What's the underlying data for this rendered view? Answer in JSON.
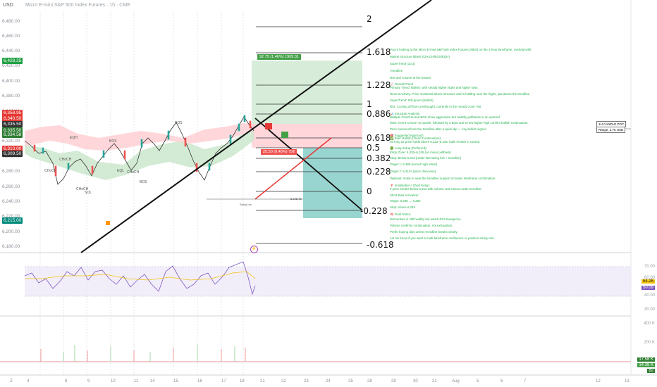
{
  "header": {
    "currency": "USD",
    "title": "Micro E-mini S&P 500 Index Futures · 1h · CME"
  },
  "price_axis": [
    "6,480.00",
    "6,460.00",
    "6,440.00",
    "6,420.00",
    "6,400.00",
    "6,380.00",
    "6,360.00",
    "6,340.00",
    "6,320.00",
    "6,300.00",
    "6,280.00",
    "6,260.00",
    "6,240.00",
    "6,220.00",
    "6,200.00",
    "6,180.00"
  ],
  "price_badges": [
    {
      "text": "6,428.25",
      "color": "#22a045"
    },
    {
      "text": "6,358.95",
      "color": "#e53935"
    },
    {
      "text": "6,340.50",
      "color": "#e53935"
    },
    {
      "text": "6,335.50",
      "color": "#333333"
    },
    {
      "text": "6,335.50",
      "color": "#2e7d32"
    },
    {
      "text": "6,334.58",
      "color": "#2e7d32"
    },
    {
      "text": "6,310.00",
      "color": "#e53935"
    },
    {
      "text": "6,309.50",
      "color": "#333333"
    },
    {
      "text": "6,215.00",
      "color": "#00897b"
    }
  ],
  "fib_levels": [
    "2",
    "1.618",
    "1.228",
    "1",
    "0.886",
    "0.618",
    "0.5",
    "0.382",
    "0.228",
    "0",
    "-0.228",
    "-0.618"
  ],
  "position_boxes": {
    "target": "92.75 (1.46%) 1909.31",
    "stop": "25.50 (0.40%) 75¢"
  },
  "chart_annotations": {
    "eqh": "EQH",
    "choch_a": "CHoCH",
    "choch_b": "CHoCH",
    "choch_c": "CHoCH",
    "choch_d": "CHoCH",
    "bos_a": "BOS",
    "bos_b": "BOS",
    "bos_c": "BOS",
    "sol": "SOL",
    "eql": "EQL",
    "sell_side": "Swing Low",
    "poi": "1H CANDLE POI*",
    "range": "Range: 2.75 USD",
    "mid_price": "6,248.75"
  },
  "notes": [
    "You're looking at the Micro E-mini S&P 500 Index Futures (MES) on the 1-hour timeframe, overlaid with:",
    "Market structure labels (CHoCH/BOS/EQH)",
    "SuperTrend (10,3)",
    "Trendline",
    "RSI and volume at the bottom",
    "📈 Overall Trend",
    "Primary Trend: Bullish, with steady higher highs and higher lows.",
    "Recent Activity: Price reclaimed above structure and is holding near the highs, just above the trendline.",
    "SuperTrend: Still green (bullish).",
    "RSI: Cooling off from overbought; currently in the neutral zone ~50.",
    "📊 Structure Analysis:",
    "Multiple CHoCHs and BOS show aggressive but healthy pullbacks in an uptrend.",
    "Most recent CHoCH to upside, followed by a BOS and a new higher high confirm bullish continuation.",
    "Price bounced from the trendline after a quick dip — key bullish signal.",
    "🎯 Suggested Approach:",
    "✅ Bias: Bullish (Trend Continuation)",
    "As long as price holds above 6,322–6,335, bulls remain in control.",
    "🟢 Long Setup (Preferred):",
    "Entry Zone: 6,335–6,345 (on minor pullback)",
    "Stop: Below 6,312 (under last swing low + trendline)",
    "Target 1: 6,380 (recent high retest)",
    "Target 2: 6,410+ (price discovery)",
    "Optional: Scale in near the trendline support on lower timeframe confirmation.",
    "🔻 Invalidation / Short Setup:",
    "If price breaks below 6,312 with volume and closes under trendline.",
    "Short Bias Activation:",
    "Target: 6,290 → 6,250",
    "Stop: Above 6,345",
    "🧠 Final Notes:",
    "Momentum is still healthy but watch RSI divergence.",
    "Volume confirms continuation, not exhaustion.",
    "Prefer buying dips unless trendline breaks clearly.",
    "Let me know if you want a multi-timeframe confluence or position sizing calc."
  ],
  "rsi": {
    "axis": [
      "70.00",
      "60.00",
      "40.00",
      "30.00"
    ],
    "badge_a": "54.25",
    "badge_b": "50.09",
    "badge_a_color": "#f4c20d",
    "badge_b_color": "#7e57c2"
  },
  "volume": {
    "axis": [
      "400 K",
      "200 K"
    ],
    "badges": [
      {
        "text": "17.58 K",
        "color": "#2e7d32"
      },
      {
        "text": "14.38 K",
        "color": "#43a047"
      },
      {
        "text": "82",
        "color": "#2e7d32"
      }
    ]
  },
  "time_axis": [
    "4",
    "8",
    "9",
    "10",
    "11",
    "14",
    "15",
    "16",
    "17",
    "18",
    "21",
    "22",
    "23",
    "24",
    "25",
    "28",
    "29",
    "30",
    "31",
    "Aug",
    "5",
    "6",
    "7",
    "12",
    "13"
  ],
  "colors": {
    "up": "#26a69a",
    "down": "#ef5350",
    "supertrend_green": "#c8e6c9",
    "supertrend_red": "#ffcdd2",
    "rsi_line": "#7e57c2",
    "rsi_ma": "#f4c20d"
  }
}
